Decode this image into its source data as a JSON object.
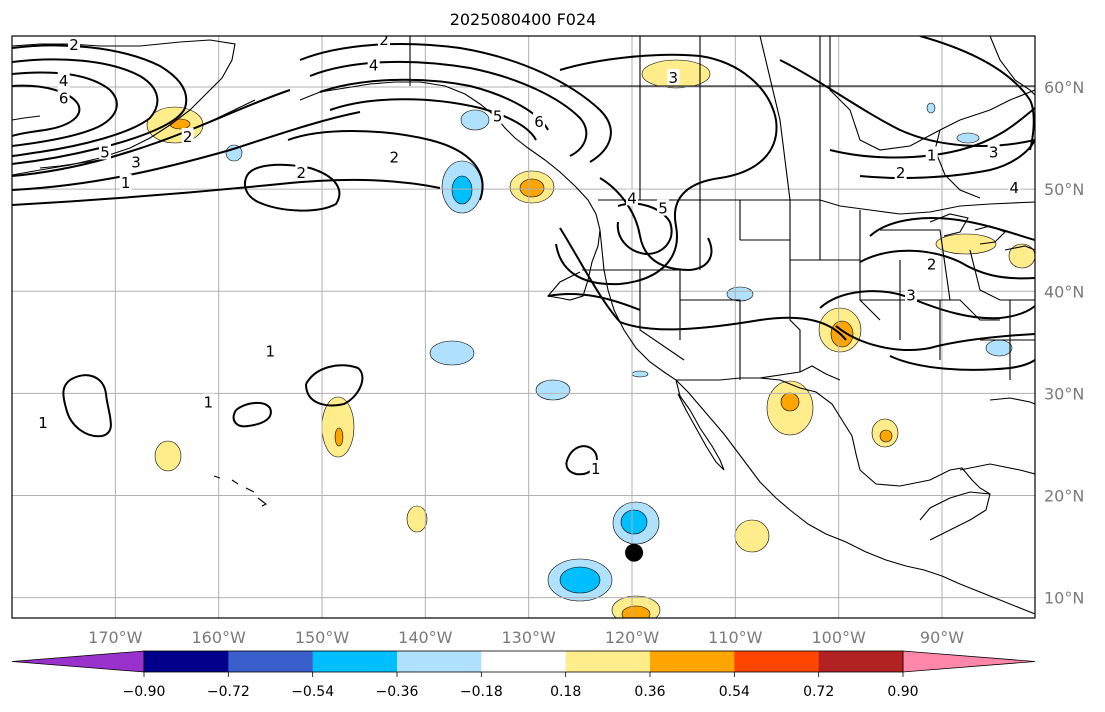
{
  "title": "2025080400 F024",
  "map": {
    "projection": "PlateCarree",
    "lon_range": [
      -180,
      -81
    ],
    "lat_range": [
      8,
      65
    ],
    "lon_ticks": [
      {
        "value": -170,
        "label": "170°W"
      },
      {
        "value": -160,
        "label": "160°W"
      },
      {
        "value": -150,
        "label": "150°W"
      },
      {
        "value": -140,
        "label": "140°W"
      },
      {
        "value": -130,
        "label": "130°W"
      },
      {
        "value": -120,
        "label": "120°W"
      },
      {
        "value": -110,
        "label": "110°W"
      },
      {
        "value": -100,
        "label": "100°W"
      },
      {
        "value": -90,
        "label": "90°W"
      }
    ],
    "lat_ticks": [
      {
        "value": 60,
        "label": "60°N"
      },
      {
        "value": 50,
        "label": "50°N"
      },
      {
        "value": 40,
        "label": "40°N"
      },
      {
        "value": 30,
        "label": "30°N"
      },
      {
        "value": 20,
        "label": "20°N"
      },
      {
        "value": 10,
        "label": "10°N"
      }
    ],
    "grid": true,
    "contour_labels": [
      {
        "text": "2",
        "lon": -174,
        "lat": 64
      },
      {
        "text": "4",
        "lon": -175,
        "lat": 60.5
      },
      {
        "text": "6",
        "lon": -175,
        "lat": 58.8
      },
      {
        "text": "5",
        "lon": -171,
        "lat": 53.5
      },
      {
        "text": "3",
        "lon": -168,
        "lat": 52.5
      },
      {
        "text": "1",
        "lon": -169,
        "lat": 50.5
      },
      {
        "text": "2",
        "lon": -152,
        "lat": 51.5
      },
      {
        "text": "2",
        "lon": -163,
        "lat": 55
      },
      {
        "text": "4",
        "lon": -145,
        "lat": 62
      },
      {
        "text": "2",
        "lon": -144,
        "lat": 64.5
      },
      {
        "text": "6",
        "lon": -129,
        "lat": 56.5
      },
      {
        "text": "2",
        "lon": -143,
        "lat": 53
      },
      {
        "text": "5",
        "lon": -133,
        "lat": 57
      },
      {
        "text": "4",
        "lon": -120,
        "lat": 49
      },
      {
        "text": "5",
        "lon": -117,
        "lat": 48
      },
      {
        "text": "1",
        "lon": -91,
        "lat": 53.2
      },
      {
        "text": "2",
        "lon": -94,
        "lat": 51.5
      },
      {
        "text": "3",
        "lon": -85,
        "lat": 53.5
      },
      {
        "text": "4",
        "lon": -83,
        "lat": 50
      },
      {
        "text": "3",
        "lon": -93,
        "lat": 39.5
      },
      {
        "text": "2",
        "lon": -91,
        "lat": 42.5
      },
      {
        "text": "1",
        "lon": -155,
        "lat": 34
      },
      {
        "text": "1",
        "lon": -161,
        "lat": 29
      },
      {
        "text": "1",
        "lon": -177,
        "lat": 27
      },
      {
        "text": "1",
        "lon": -123.5,
        "lat": 22.5
      },
      {
        "text": "3",
        "lon": -116,
        "lat": 60.8
      }
    ],
    "marker": {
      "name": "storm-position",
      "lon": -119.8,
      "lat": 14.4,
      "color": "#000000"
    }
  },
  "colorbar": {
    "tick_labels": [
      "−0.90",
      "−0.72",
      "−0.54",
      "−0.36",
      "−0.18",
      "0.18",
      "0.36",
      "0.54",
      "0.72",
      "0.90"
    ],
    "tick_values": [
      -0.9,
      -0.72,
      -0.54,
      -0.36,
      -0.18,
      0.18,
      0.36,
      0.54,
      0.72,
      0.9
    ],
    "under_color": "#9932cc",
    "over_color": "#ff88aa",
    "segment_colors": [
      "#00008b",
      "#3a5fcd",
      "#00bfff",
      "#b0e2ff",
      "#ffffff",
      "#ffec8b",
      "#ffa500",
      "#ff4500",
      "#b22222"
    ]
  },
  "colors": {
    "ocean_bg": "#ffffff",
    "grid": "#b0b0b0",
    "contour": "#000000",
    "coast": "#000000"
  }
}
